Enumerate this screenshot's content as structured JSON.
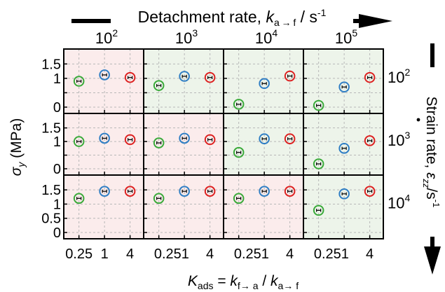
{
  "chart_data": {
    "type": "scatter",
    "top_axis_title": {
      "main": "Detachment rate, ",
      "var": "k",
      "sub": "a → f",
      "unit": " / s",
      "sup": "-1"
    },
    "right_axis_title": {
      "main": "Strain rate, ",
      "var": "ε",
      "sub": "zz",
      "unit": "/s",
      "sup": "-1"
    },
    "ylabel": {
      "var": "σ",
      "sub": "y",
      "unit": " (MPa)"
    },
    "xlabel": {
      "var": "K",
      "sub_ads": "ads",
      "eq": " = ",
      "var2": "k",
      "sub2": "f→ a",
      "slash": " / ",
      "var3": "k",
      "sub3": "a→ f"
    },
    "column_headers": [
      "10",
      "10",
      "10",
      "10"
    ],
    "column_exponents": [
      "2",
      "3",
      "4",
      "5"
    ],
    "row_headers": [
      "10",
      "10",
      "10"
    ],
    "row_exponents": [
      "2",
      "3",
      "4"
    ],
    "x_categories": [
      0.25,
      1,
      4
    ],
    "x_tick_labels_per_column": [
      [
        "0.25",
        "1",
        "4"
      ],
      [
        "0.251",
        "4"
      ],
      [
        "0.251",
        "4"
      ],
      [
        "0.251",
        "4"
      ]
    ],
    "y_ticks_per_row": [
      [
        "1.5",
        "1",
        "0"
      ],
      [
        "1.5",
        "1",
        "0"
      ],
      [
        "1.5",
        "1",
        "0.5",
        "0"
      ]
    ],
    "ylim": [
      0,
      1.8
    ],
    "series_colors": [
      "#3aaa3a",
      "#2f7ec4",
      "#dd2222"
    ],
    "panel_colors": {
      "pink": "#fbecec",
      "green": "#edf4ea"
    },
    "panel_shading": [
      [
        "pink",
        "green",
        "green",
        "green"
      ],
      [
        "pink",
        "pink",
        "green",
        "green"
      ],
      [
        "pink",
        "pink",
        "pink",
        "green"
      ]
    ],
    "values": [
      [
        [
          0.9,
          1.12,
          1.03
        ],
        [
          0.75,
          1.07,
          1.03
        ],
        [
          0.1,
          0.82,
          1.08
        ],
        [
          0.06,
          0.7,
          1.03
        ]
      ],
      [
        [
          1.0,
          1.12,
          1.07
        ],
        [
          0.95,
          1.12,
          1.07
        ],
        [
          0.6,
          1.1,
          1.1
        ],
        [
          0.18,
          0.75,
          1.03
        ]
      ],
      [
        [
          1.2,
          1.45,
          1.45
        ],
        [
          1.2,
          1.45,
          1.45
        ],
        [
          1.2,
          1.45,
          1.45
        ],
        [
          0.78,
          1.36,
          1.45
        ]
      ]
    ]
  }
}
